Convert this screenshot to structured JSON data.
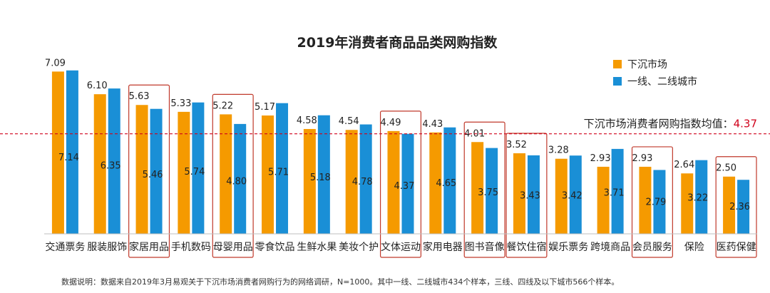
{
  "chart_data": {
    "type": "bar",
    "title": "2019年消费者商品品类网购指数",
    "categories": [
      "交通票务",
      "服装服饰",
      "家居用品",
      "手机数码",
      "母婴用品",
      "零食饮品",
      "生鲜水果",
      "美妆个护",
      "文体运动",
      "家用电器",
      "图书音像",
      "餐饮住宿",
      "娱乐票务",
      "跨境商品",
      "会员服务",
      "保险",
      "医药保健"
    ],
    "series": [
      {
        "name": "下沉市场",
        "color": "#f59a00",
        "values": [
          7.09,
          6.1,
          5.63,
          5.33,
          5.22,
          5.17,
          4.58,
          4.54,
          4.49,
          4.43,
          4.01,
          3.52,
          3.28,
          2.93,
          2.93,
          2.64,
          2.5
        ]
      },
      {
        "name": "一线、二线城市",
        "color": "#1a8fd6",
        "values": [
          7.14,
          6.35,
          5.46,
          5.74,
          4.8,
          5.71,
          5.18,
          4.78,
          4.37,
          4.65,
          3.75,
          3.43,
          3.42,
          3.71,
          2.79,
          3.22,
          2.36
        ]
      }
    ],
    "ylim": [
      0,
      7.6
    ],
    "reference_line": {
      "label": "下沉市场消费者网购指数均值：",
      "value": 4.37,
      "value_text": "4.37",
      "color": "#d0021b"
    },
    "highlighted_categories": [
      "家居用品",
      "母婴用品",
      "文体运动",
      "图书音像",
      "餐饮住宿",
      "会员服务",
      "医药保健"
    ],
    "legend_position": "top-right",
    "grid": false
  },
  "footnote": "数据说明：数据来自2019年3月易观关于下沉市场消费者网购行为的网络调研，N=1000。其中一线、二线城市434个样本，三线、四线及以下城市566个样本。"
}
